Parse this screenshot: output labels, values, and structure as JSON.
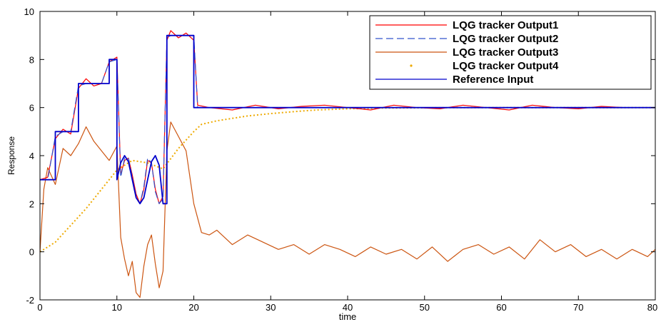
{
  "chart_data": {
    "type": "line",
    "xlabel": "time",
    "ylabel": "Response",
    "xlim": [
      0,
      80
    ],
    "ylim": [
      -2,
      10
    ],
    "x_ticks": [
      0,
      10,
      20,
      30,
      40,
      50,
      60,
      70,
      80
    ],
    "y_ticks": [
      -2,
      0,
      2,
      4,
      6,
      8,
      10
    ],
    "grid": false,
    "legend_position": "top-right",
    "series": [
      {
        "name": "LQG tracker Output1",
        "color": "#ff0000",
        "style": "solid",
        "points": [
          [
            0,
            3
          ],
          [
            1,
            3.1
          ],
          [
            2,
            4.7
          ],
          [
            3,
            5.1
          ],
          [
            4,
            4.9
          ],
          [
            5,
            6.8
          ],
          [
            6,
            7.2
          ],
          [
            7,
            6.9
          ],
          [
            8,
            7.0
          ],
          [
            9,
            7.9
          ],
          [
            10,
            8.1
          ],
          [
            10.5,
            3.2
          ],
          [
            11,
            3.8
          ],
          [
            11.5,
            3.9
          ],
          [
            12,
            3.2
          ],
          [
            12.5,
            2.4
          ],
          [
            13,
            2.0
          ],
          [
            13.5,
            2.6
          ],
          [
            14,
            3.8
          ],
          [
            14.5,
            3.7
          ],
          [
            15,
            2.6
          ],
          [
            15.5,
            2.0
          ],
          [
            16,
            2.3
          ],
          [
            16.5,
            8.8
          ],
          [
            17,
            9.2
          ],
          [
            18,
            8.9
          ],
          [
            19,
            9.1
          ],
          [
            20,
            8.8
          ],
          [
            20.5,
            6.1
          ],
          [
            22,
            6.0
          ],
          [
            25,
            5.9
          ],
          [
            28,
            6.1
          ],
          [
            31,
            5.95
          ],
          [
            34,
            6.05
          ],
          [
            37,
            6.1
          ],
          [
            40,
            6.0
          ],
          [
            43,
            5.9
          ],
          [
            46,
            6.1
          ],
          [
            49,
            6.0
          ],
          [
            52,
            5.95
          ],
          [
            55,
            6.1
          ],
          [
            58,
            6.0
          ],
          [
            61,
            5.9
          ],
          [
            64,
            6.1
          ],
          [
            67,
            6.0
          ],
          [
            70,
            5.95
          ],
          [
            73,
            6.05
          ],
          [
            76,
            6.0
          ],
          [
            80,
            6.0
          ]
        ]
      },
      {
        "name": "LQG tracker Output2",
        "color": "#3355cc",
        "style": "dashed",
        "points": [
          [
            0,
            3
          ],
          [
            1,
            3.0
          ],
          [
            2,
            4.8
          ],
          [
            3,
            5.0
          ],
          [
            4,
            5.0
          ],
          [
            5,
            6.9
          ],
          [
            6,
            7.0
          ],
          [
            7,
            7.0
          ],
          [
            8,
            7.0
          ],
          [
            9,
            7.9
          ],
          [
            10,
            8.0
          ],
          [
            10.5,
            3.1
          ],
          [
            11,
            3.9
          ],
          [
            11.5,
            3.9
          ],
          [
            12,
            3.1
          ],
          [
            12.5,
            2.3
          ],
          [
            13,
            2.0
          ],
          [
            13.5,
            2.7
          ],
          [
            14,
            3.9
          ],
          [
            14.5,
            3.7
          ],
          [
            15,
            2.5
          ],
          [
            15.5,
            2.0
          ],
          [
            16,
            2.2
          ],
          [
            16.5,
            8.9
          ],
          [
            17,
            9.0
          ],
          [
            18,
            9.0
          ],
          [
            19,
            9.0
          ],
          [
            20,
            9.0
          ],
          [
            20.5,
            6.0
          ],
          [
            22,
            6.0
          ],
          [
            25,
            6.0
          ],
          [
            30,
            6.0
          ],
          [
            40,
            6.0
          ],
          [
            50,
            6.0
          ],
          [
            60,
            6.0
          ],
          [
            70,
            6.0
          ],
          [
            80,
            6.0
          ]
        ]
      },
      {
        "name": "LQG tracker Output3",
        "color": "#cc5511",
        "style": "solid",
        "points": [
          [
            0,
            0
          ],
          [
            0.5,
            2.6
          ],
          [
            1,
            3.5
          ],
          [
            2,
            2.8
          ],
          [
            3,
            4.3
          ],
          [
            4,
            4.0
          ],
          [
            5,
            4.5
          ],
          [
            6,
            5.2
          ],
          [
            7,
            4.6
          ],
          [
            8,
            4.2
          ],
          [
            9,
            3.8
          ],
          [
            10,
            4.4
          ],
          [
            10.5,
            0.6
          ],
          [
            11,
            -0.3
          ],
          [
            11.5,
            -1.0
          ],
          [
            12,
            -0.4
          ],
          [
            12.5,
            -1.7
          ],
          [
            13,
            -1.9
          ],
          [
            13.5,
            -0.6
          ],
          [
            14,
            0.3
          ],
          [
            14.5,
            0.7
          ],
          [
            15,
            -0.5
          ],
          [
            15.5,
            -1.5
          ],
          [
            16,
            -0.8
          ],
          [
            16.5,
            4.2
          ],
          [
            17,
            5.4
          ],
          [
            18,
            4.8
          ],
          [
            19,
            4.2
          ],
          [
            20,
            2.0
          ],
          [
            21,
            0.8
          ],
          [
            22,
            0.7
          ],
          [
            23,
            0.9
          ],
          [
            25,
            0.3
          ],
          [
            27,
            0.7
          ],
          [
            29,
            0.4
          ],
          [
            31,
            0.1
          ],
          [
            33,
            0.3
          ],
          [
            35,
            -0.1
          ],
          [
            37,
            0.3
          ],
          [
            39,
            0.1
          ],
          [
            41,
            -0.2
          ],
          [
            43,
            0.2
          ],
          [
            45,
            -0.1
          ],
          [
            47,
            0.1
          ],
          [
            49,
            -0.3
          ],
          [
            51,
            0.2
          ],
          [
            53,
            -0.4
          ],
          [
            55,
            0.1
          ],
          [
            57,
            0.3
          ],
          [
            59,
            -0.1
          ],
          [
            61,
            0.2
          ],
          [
            63,
            -0.3
          ],
          [
            65,
            0.5
          ],
          [
            67,
            0.0
          ],
          [
            69,
            0.3
          ],
          [
            71,
            -0.2
          ],
          [
            73,
            0.1
          ],
          [
            75,
            -0.3
          ],
          [
            77,
            0.1
          ],
          [
            79,
            -0.2
          ],
          [
            80,
            0.1
          ]
        ]
      },
      {
        "name": "LQG tracker Output4",
        "color": "#eeaa00",
        "style": "dotted",
        "points": [
          [
            0,
            0
          ],
          [
            2,
            0.4
          ],
          [
            4,
            1.1
          ],
          [
            6,
            1.8
          ],
          [
            8,
            2.6
          ],
          [
            10,
            3.4
          ],
          [
            12,
            3.8
          ],
          [
            14,
            3.7
          ],
          [
            16,
            3.45
          ],
          [
            18,
            4.3
          ],
          [
            20,
            5.0
          ],
          [
            21,
            5.3
          ],
          [
            23,
            5.45
          ],
          [
            25,
            5.55
          ],
          [
            27,
            5.65
          ],
          [
            30,
            5.75
          ],
          [
            33,
            5.83
          ],
          [
            36,
            5.9
          ],
          [
            40,
            5.95
          ],
          [
            45,
            5.98
          ],
          [
            50,
            5.99
          ],
          [
            55,
            6.0
          ],
          [
            60,
            6.0
          ],
          [
            70,
            6.0
          ],
          [
            80,
            6.0
          ]
        ]
      },
      {
        "name": "Reference Input",
        "color": "#0000cc",
        "style": "solid",
        "points": [
          [
            0,
            3
          ],
          [
            2,
            3
          ],
          [
            2,
            5
          ],
          [
            5,
            5
          ],
          [
            5,
            7
          ],
          [
            9,
            7
          ],
          [
            9,
            8
          ],
          [
            10,
            8
          ],
          [
            10,
            3
          ],
          [
            10.5,
            3.7
          ],
          [
            11,
            4.0
          ],
          [
            11.5,
            3.75
          ],
          [
            12,
            3.0
          ],
          [
            12.5,
            2.25
          ],
          [
            13,
            2.0
          ],
          [
            13.5,
            2.25
          ],
          [
            14,
            3.0
          ],
          [
            14.5,
            3.75
          ],
          [
            15,
            4.0
          ],
          [
            15.5,
            3.6
          ],
          [
            16,
            2.0
          ],
          [
            16.5,
            2.0
          ],
          [
            16.5,
            9
          ],
          [
            20,
            9
          ],
          [
            20,
            6
          ],
          [
            80,
            6
          ]
        ]
      }
    ]
  }
}
